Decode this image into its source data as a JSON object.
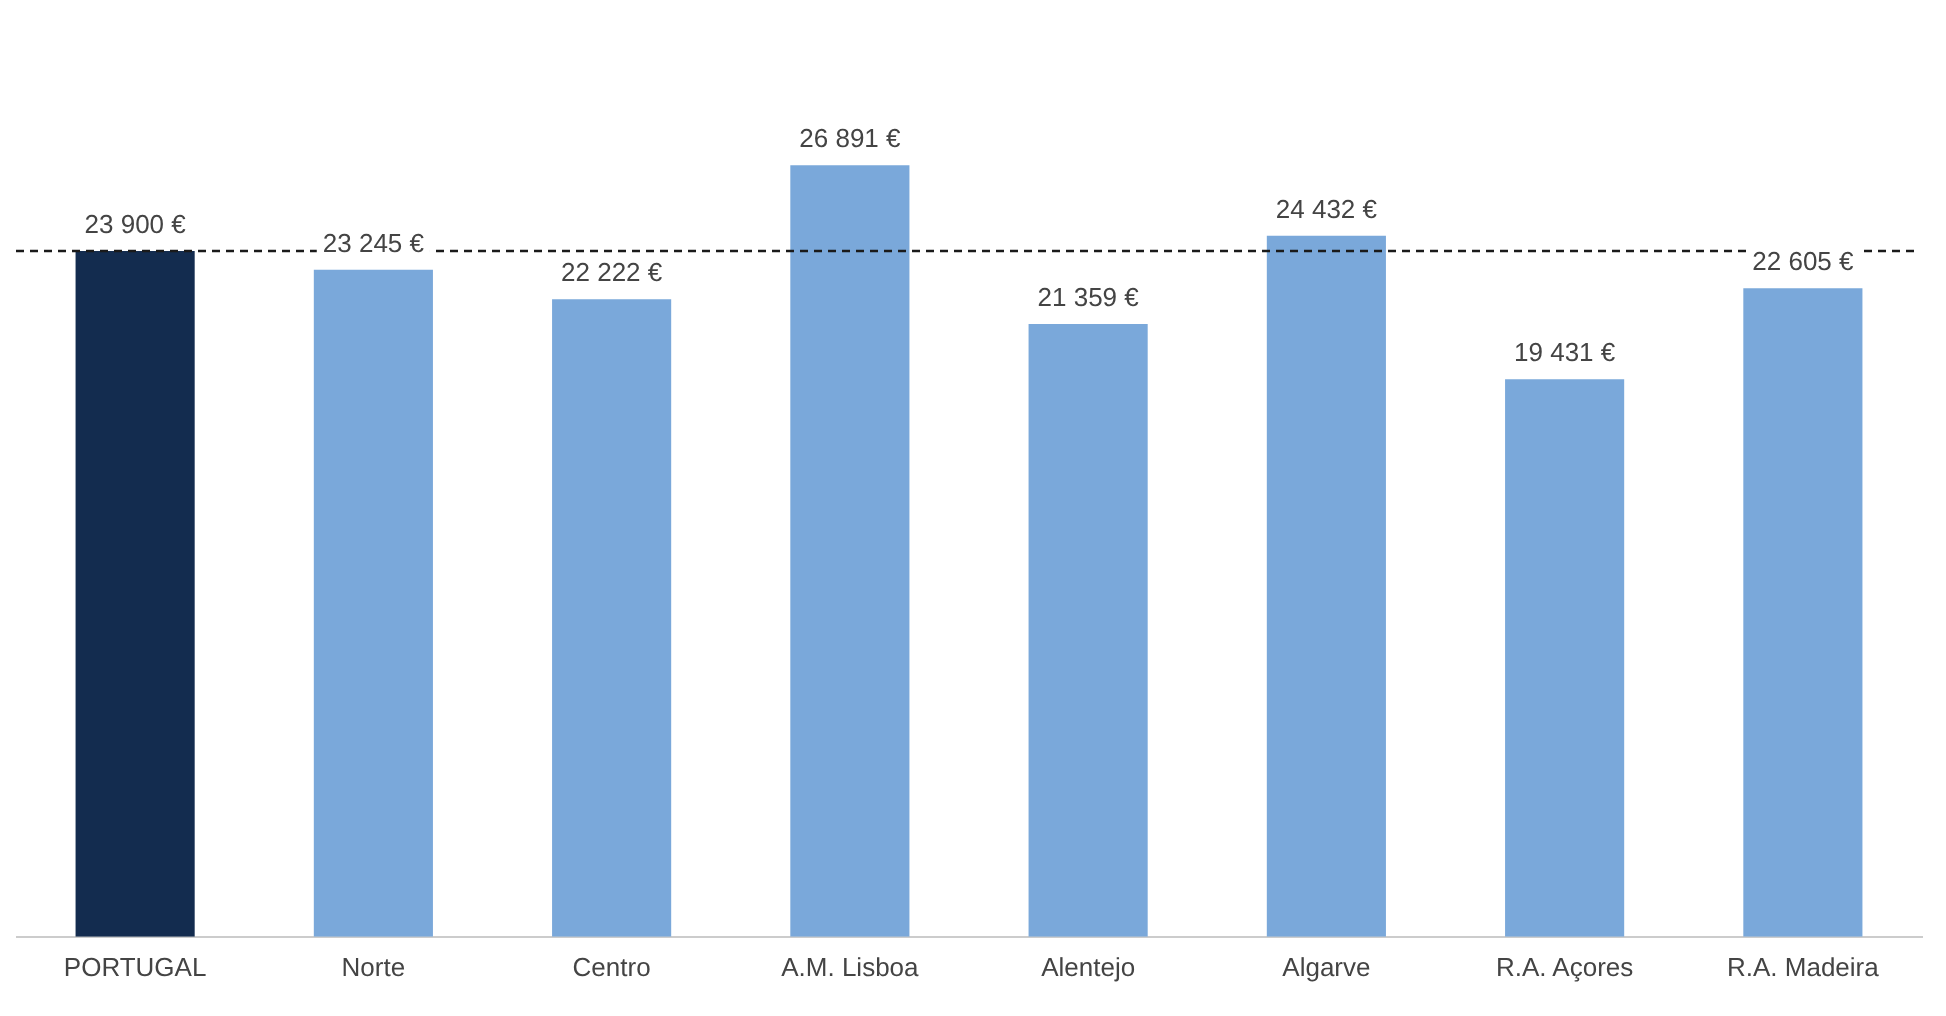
{
  "chart_data": {
    "type": "bar",
    "categories": [
      "PORTUGAL",
      "Norte",
      "Centro",
      "A.M. Lisboa",
      "Alentejo",
      "Algarve",
      "R.A. Açores",
      "R.A. Madeira"
    ],
    "values": [
      23900,
      23245,
      22222,
      26891,
      21359,
      24432,
      19431,
      22605
    ],
    "colors": [
      "#132c4f",
      "#7aa8da",
      "#7aa8da",
      "#7aa8da",
      "#7aa8da",
      "#7aa8da",
      "#7aa8da",
      "#7aa8da"
    ],
    "value_labels": [
      "23 900 €",
      "23 245 €",
      "22 222 €",
      "26 891 €",
      "21 359 €",
      "24 432 €",
      "19 431 €",
      "22 605 €"
    ],
    "tick_labels": "x",
    "grid": false,
    "legend": false,
    "ref_lines": [
      {
        "axis": "y",
        "value": 23900,
        "color": "#1a1a1a",
        "line_style": "dashed"
      }
    ]
  }
}
